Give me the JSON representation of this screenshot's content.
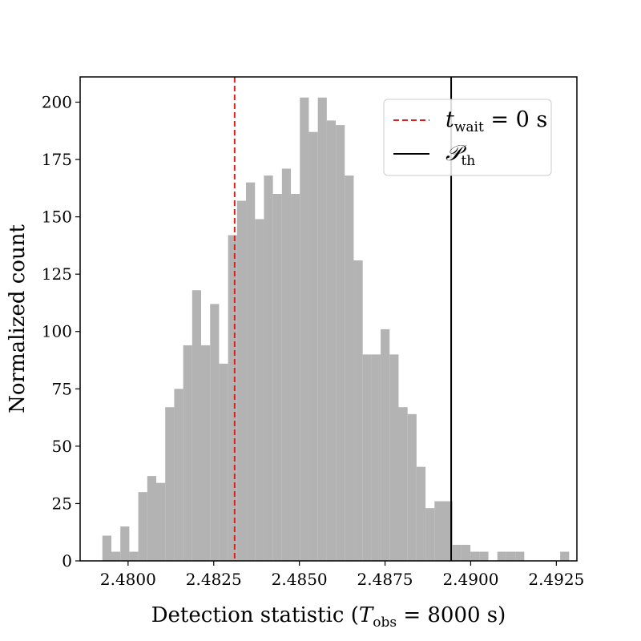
{
  "chart_data": {
    "type": "bar",
    "xlabel_prefix": "Detection statistic (",
    "xlabel_var": "T",
    "xlabel_sub": "obs",
    "xlabel_suffix": " = 8000 s)",
    "ylabel": "Normalized count",
    "xlim": [
      2.4786,
      2.4931
    ],
    "ylim": [
      0,
      211
    ],
    "xticks": [
      {
        "value": 2.48,
        "label": "2.4800"
      },
      {
        "value": 2.4825,
        "label": "2.4825"
      },
      {
        "value": 2.485,
        "label": "2.4850"
      },
      {
        "value": 2.4875,
        "label": "2.4875"
      },
      {
        "value": 2.49,
        "label": "2.4900"
      },
      {
        "value": 2.4925,
        "label": "2.4925"
      }
    ],
    "yticks": [
      {
        "value": 0,
        "label": "0"
      },
      {
        "value": 25,
        "label": "25"
      },
      {
        "value": 50,
        "label": "50"
      },
      {
        "value": 75,
        "label": "75"
      },
      {
        "value": 100,
        "label": "100"
      },
      {
        "value": 125,
        "label": "125"
      },
      {
        "value": 150,
        "label": "150"
      },
      {
        "value": 175,
        "label": "175"
      },
      {
        "value": 200,
        "label": "200"
      }
    ],
    "bar_color": "#b3b3b3",
    "bin_start": 2.47925,
    "bin_width": 0.000262,
    "values": [
      11,
      4,
      15,
      4,
      30,
      37,
      34,
      67,
      75,
      94,
      118,
      94,
      112,
      86,
      142,
      157,
      165,
      149,
      168,
      160,
      171,
      160,
      202,
      187,
      202,
      192,
      190,
      168,
      131,
      90,
      90,
      101,
      90,
      67,
      64,
      41,
      23,
      26,
      26,
      7,
      7,
      4,
      4,
      0,
      4,
      4,
      4,
      0,
      0,
      0,
      0,
      4
    ],
    "vlines": [
      {
        "name": "t_wait = 0 s",
        "x": 2.48311,
        "color": "#e02020",
        "style": "dashed"
      },
      {
        "name": "P_th",
        "x": 2.48943,
        "color": "#000000",
        "style": "solid"
      }
    ],
    "legend": {
      "placement": "upper-right",
      "entries": [
        {
          "symbol": "t",
          "sub": "wait",
          "suffix": " = 0 s",
          "color": "#e02020",
          "style": "dashed"
        },
        {
          "symbol": "𝒫",
          "sub": "th",
          "suffix": "",
          "color": "#000000",
          "style": "solid"
        }
      ]
    },
    "grid": false
  }
}
